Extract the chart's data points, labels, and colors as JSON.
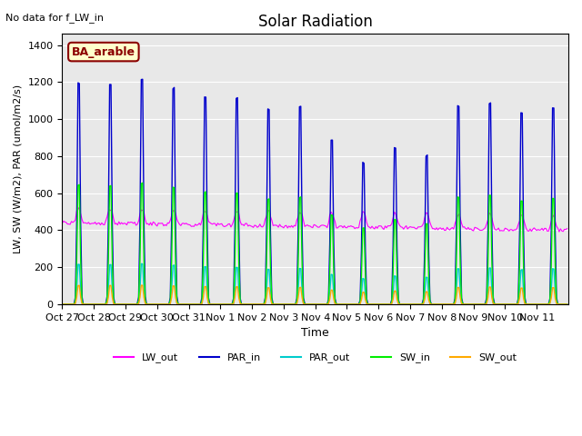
{
  "title": "Solar Radiation",
  "xlabel": "Time",
  "ylabel": "LW, SW (W/m2), PAR (umol/m2/s)",
  "annotation_text": "No data for f_LW_in",
  "legend_label_text": "BA_arable",
  "ylim": [
    0,
    1460
  ],
  "yticks": [
    0,
    200,
    400,
    600,
    800,
    1000,
    1200,
    1400
  ],
  "num_days": 16,
  "colors": {
    "LW_out": "#ff00ff",
    "PAR_in": "#0000cc",
    "PAR_out": "#00cccc",
    "SW_in": "#00ee00",
    "SW_out": "#ffaa00"
  },
  "date_labels": [
    "Oct 27",
    "Oct 28",
    "Oct 29",
    "Oct 30",
    "Oct 31",
    "Nov 1",
    "Nov 2",
    "Nov 3",
    "Nov 4",
    "Nov 5",
    "Nov 6",
    "Nov 7",
    "Nov 8",
    "Nov 9",
    "Nov 10",
    "Nov 11"
  ],
  "background_color": "#e8e8e8",
  "day_peaks_PAR_in": [
    1340,
    1330,
    1360,
    1310,
    1260,
    1250,
    1180,
    1200,
    1000,
    860,
    950,
    900,
    1200,
    1220,
    1160,
    1190
  ],
  "lw_out_base": 310,
  "lw_out_variation": 130,
  "day_start": 8.5,
  "day_end": 16.5
}
